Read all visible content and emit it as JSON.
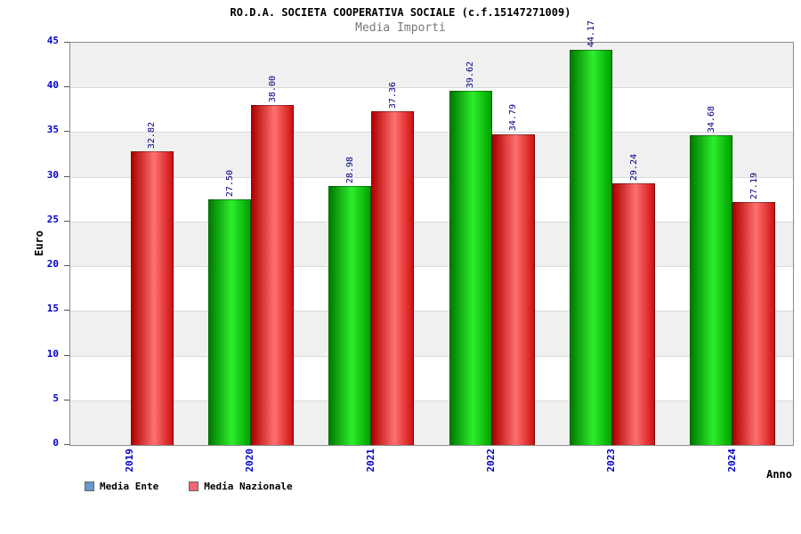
{
  "chart_data": {
    "type": "bar",
    "title": "RO.D.A. SOCIETA COOPERATIVA SOCIALE (c.f.15147271009)",
    "subtitle": "Media Importi",
    "xlabel": "Anno",
    "ylabel": "Euro",
    "ylim": [
      0,
      45
    ],
    "yticks": [
      0,
      5,
      10,
      15,
      20,
      25,
      30,
      35,
      40,
      45
    ],
    "categories": [
      "2019",
      "2020",
      "2021",
      "2022",
      "2023",
      "2024"
    ],
    "series": [
      {
        "name": "Media Ente",
        "values": [
          null,
          27.5,
          28.98,
          39.62,
          44.17,
          34.68
        ],
        "labels": [
          "",
          "27.50",
          "28.98",
          "39.62",
          "44.17",
          "34.68"
        ],
        "gradient": [
          "#007a00",
          "#2dee2d",
          "#00a000"
        ]
      },
      {
        "name": "Media Nazionale",
        "values": [
          32.82,
          38.0,
          37.36,
          34.79,
          29.24,
          27.19
        ],
        "labels": [
          "32.82",
          "38.00",
          "37.36",
          "34.79",
          "29.24",
          "27.19"
        ],
        "gradient": [
          "#b00000",
          "#ff7070",
          "#d01010"
        ]
      }
    ],
    "band_colors": [
      "#ffffff",
      "#f0f0f0"
    ],
    "grid": "horizontal-bands",
    "legend_position": "bottom-left"
  },
  "legend": {
    "items": [
      {
        "label": "Media Ente",
        "color": "#6699cc"
      },
      {
        "label": "Media Nazionale",
        "color": "#ee6677"
      }
    ]
  },
  "colors": {
    "axis_tick_label": "#0000cc",
    "value_label": "#000080",
    "subtitle_text": "#787878"
  }
}
